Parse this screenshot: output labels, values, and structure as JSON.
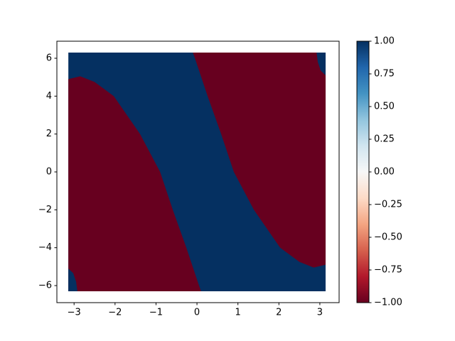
{
  "chart_data": {
    "type": "region",
    "xlim": [
      -3.42,
      3.47
    ],
    "ylim": [
      -6.9,
      6.9
    ],
    "xticks": [
      {
        "value": -3,
        "label": "−3"
      },
      {
        "value": -2,
        "label": "−2"
      },
      {
        "value": -1,
        "label": "−1"
      },
      0,
      1,
      2,
      3
    ],
    "yticks": [
      {
        "value": -6,
        "label": "−6"
      },
      {
        "value": -4,
        "label": "−4"
      },
      {
        "value": -2,
        "label": "−2"
      },
      0,
      2,
      4,
      6
    ],
    "clim": [
      -1,
      1
    ],
    "colormap": [
      "#67001f",
      "#b2182b",
      "#d6604d",
      "#f4a582",
      "#fddbc7",
      "#f7f7f7",
      "#d1e5f0",
      "#92c5de",
      "#4393c3",
      "#2166ac",
      "#053061"
    ],
    "cticks": [
      {
        "value": -1,
        "label": "−1.00"
      },
      {
        "value": -0.75,
        "label": "−0.75"
      },
      {
        "value": -0.5,
        "label": "−0.50"
      },
      {
        "value": -0.25,
        "label": "−0.25"
      },
      {
        "value": 0,
        "label": "0.00"
      },
      {
        "value": 0.25,
        "label": "0.25"
      },
      {
        "value": 0.5,
        "label": "0.50"
      },
      {
        "value": 0.75,
        "label": "0.75"
      },
      {
        "value": 1,
        "label": "1.00"
      }
    ],
    "regions": [
      {
        "value": 1,
        "x": [
          -3.14,
          3.14,
          3.14,
          -3.14
        ],
        "y": [
          -6.3,
          -6.3,
          6.3,
          6.3
        ]
      },
      {
        "value": -1,
        "x": [
          -3.14,
          -2.85,
          -2.5,
          -2.03,
          -1.39,
          -0.9,
          -0.59,
          -0.26,
          0.05,
          0.1,
          -3.14
        ],
        "y": [
          4.9,
          5.05,
          4.75,
          4,
          2,
          0,
          -2,
          -4,
          -6,
          -6.3,
          -6.3
        ]
      },
      {
        "value": -1,
        "x": [
          -0.1,
          -0.05,
          0.26,
          0.59,
          0.9,
          1.39,
          2.03,
          2.5,
          2.85,
          3.14,
          3.14
        ],
        "y": [
          6.3,
          6,
          4,
          2,
          0,
          -2,
          -4,
          -4.75,
          -5.05,
          -4.9,
          6.3
        ]
      },
      {
        "value": 1,
        "x": [
          2.92,
          2.95,
          3.02,
          3.14,
          3.14
        ],
        "y": [
          6.3,
          5.8,
          5.35,
          5.1,
          6.3
        ]
      },
      {
        "value": 1,
        "x": [
          -2.92,
          -2.95,
          -3.02,
          -3.14,
          -3.14
        ],
        "y": [
          -6.3,
          -5.8,
          -5.35,
          -5.1,
          -6.3
        ]
      }
    ]
  }
}
